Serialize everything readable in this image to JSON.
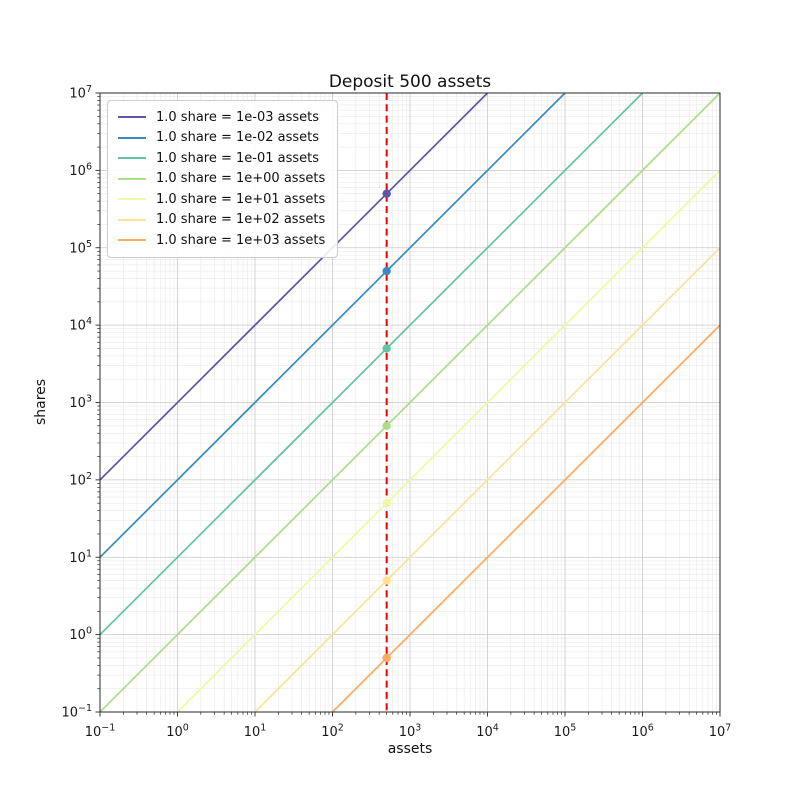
{
  "chart_data": {
    "type": "line",
    "title": "Deposit 500 assets",
    "xlabel": "assets",
    "ylabel": "shares",
    "x_scale": "log",
    "y_scale": "log",
    "xlim": [
      0.1,
      10000000
    ],
    "ylim": [
      0.1,
      10000000
    ],
    "x_tick_exponents": [
      -1,
      0,
      1,
      2,
      3,
      4,
      5,
      6,
      7
    ],
    "y_tick_exponents": [
      -1,
      0,
      1,
      2,
      3,
      4,
      5,
      6,
      7
    ],
    "grid": {
      "major": true,
      "minor": true,
      "major_color": "#c9c9c9",
      "minor_color": "#e9e9e9"
    },
    "legend_position": "upper-left",
    "deposit_assets": 500,
    "series": [
      {
        "label": "1.0 share = 1e-03 assets",
        "assets_per_share": 0.001,
        "color": "#5e55a8",
        "point": {
          "assets": 500,
          "shares": 500000
        }
      },
      {
        "label": "1.0 share = 1e-02 assets",
        "assets_per_share": 0.01,
        "color": "#3a8abd",
        "point": {
          "assets": 500,
          "shares": 50000
        }
      },
      {
        "label": "1.0 share = 1e-01 assets",
        "assets_per_share": 0.1,
        "color": "#62c4a3",
        "point": {
          "assets": 500,
          "shares": 5000
        }
      },
      {
        "label": "1.0 share = 1e+00 assets",
        "assets_per_share": 1,
        "color": "#abdd8b",
        "point": {
          "assets": 500,
          "shares": 500
        }
      },
      {
        "label": "1.0 share = 1e+01 assets",
        "assets_per_share": 10,
        "color": "#eff9a3",
        "point": {
          "assets": 500,
          "shares": 50
        }
      },
      {
        "label": "1.0 share = 1e+02 assets",
        "assets_per_share": 100,
        "color": "#fee294",
        "point": {
          "assets": 500,
          "shares": 5
        }
      },
      {
        "label": "1.0 share = 1e+03 assets",
        "assets_per_share": 1000,
        "color": "#fcab60",
        "point": {
          "assets": 500,
          "shares": 0.5
        }
      }
    ],
    "vline": {
      "x": 500,
      "color": "#ee0000",
      "style": "dashed",
      "width": 2
    }
  }
}
